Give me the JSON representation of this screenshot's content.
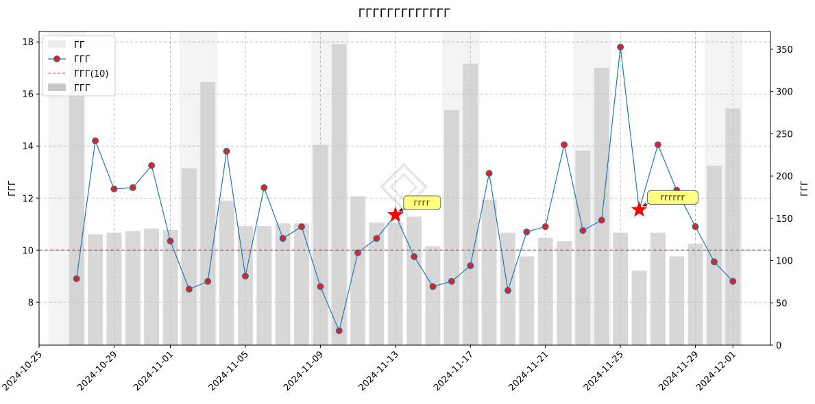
{
  "chart_data": {
    "type": "line",
    "title": "ГГГГГГГГГГГГГ",
    "ylabel": "ГГГ",
    "y2label": "ГГГ",
    "ylim": [
      6.35,
      18.4
    ],
    "y2lim": [
      0,
      371
    ],
    "xlim": [
      "2024-10-25",
      "2024-12-03"
    ],
    "grid": true,
    "legend_placement": "top-left",
    "yticks": [
      8,
      10,
      12,
      14,
      16,
      18
    ],
    "y2ticks": [
      0,
      50,
      100,
      150,
      200,
      250,
      300,
      350
    ],
    "xticks": [
      "2024-10-25",
      "2024-10-29",
      "2024-11-01",
      "2024-11-05",
      "2024-11-09",
      "2024-11-13",
      "2024-11-17",
      "2024-11-21",
      "2024-11-25",
      "2024-11-29",
      "2024-12-01"
    ],
    "x": [
      "2024-10-27",
      "2024-10-28",
      "2024-10-29",
      "2024-10-30",
      "2024-10-31",
      "2024-11-01",
      "2024-11-02",
      "2024-11-03",
      "2024-11-04",
      "2024-11-05",
      "2024-11-06",
      "2024-11-07",
      "2024-11-08",
      "2024-11-09",
      "2024-11-10",
      "2024-11-11",
      "2024-11-12",
      "2024-11-13",
      "2024-11-14",
      "2024-11-15",
      "2024-11-16",
      "2024-11-17",
      "2024-11-18",
      "2024-11-19",
      "2024-11-20",
      "2024-11-21",
      "2024-11-22",
      "2024-11-23",
      "2024-11-24",
      "2024-11-25",
      "2024-11-26",
      "2024-11-27",
      "2024-11-28",
      "2024-11-29",
      "2024-11-30",
      "2024-12-01"
    ],
    "series": [
      {
        "name": "ГГГ",
        "kind": "line",
        "axis": "left",
        "color": "#1f77b4",
        "marker_color": "#d62728",
        "values": [
          8.9,
          14.2,
          12.35,
          12.4,
          13.25,
          10.35,
          8.5,
          8.8,
          13.8,
          9.0,
          12.4,
          10.45,
          10.9,
          8.6,
          6.9,
          9.9,
          10.45,
          11.35,
          9.75,
          8.6,
          8.8,
          9.4,
          12.95,
          8.45,
          10.7,
          10.9,
          14.05,
          10.75,
          11.15,
          17.8,
          11.55,
          14.05,
          12.3,
          10.9,
          9.55,
          8.8
        ]
      },
      {
        "name": "ГГГ",
        "kind": "bar",
        "axis": "right",
        "color": "#c8c8c8",
        "values": [
          335,
          131,
          133,
          135,
          138,
          136,
          209,
          311,
          171,
          141,
          141,
          144,
          144,
          237,
          356,
          176,
          145,
          145,
          152,
          117,
          278,
          333,
          172,
          133,
          105,
          127,
          123,
          230,
          328,
          133,
          88,
          133,
          105,
          120,
          212,
          280
        ]
      }
    ],
    "weekend_shading": {
      "name": "ГГ",
      "color": "#e8e8e8",
      "ranges": [
        [
          "2024-10-26",
          "2024-10-28"
        ],
        [
          "2024-11-02",
          "2024-11-04"
        ],
        [
          "2024-11-09",
          "2024-11-11"
        ],
        [
          "2024-11-16",
          "2024-11-18"
        ],
        [
          "2024-11-23",
          "2024-11-25"
        ],
        [
          "2024-11-30",
          "2024-12-02"
        ]
      ]
    },
    "reference_line": {
      "name": "ГГГ(10)",
      "value": 10,
      "color": "#e03030"
    },
    "annotations": [
      {
        "x": "2024-11-13",
        "y": 11.35,
        "text": "ГГГГ",
        "marker": "star"
      },
      {
        "x": "2024-11-26",
        "y": 11.55,
        "text": "ГГГГГГ",
        "marker": "star"
      }
    ]
  }
}
